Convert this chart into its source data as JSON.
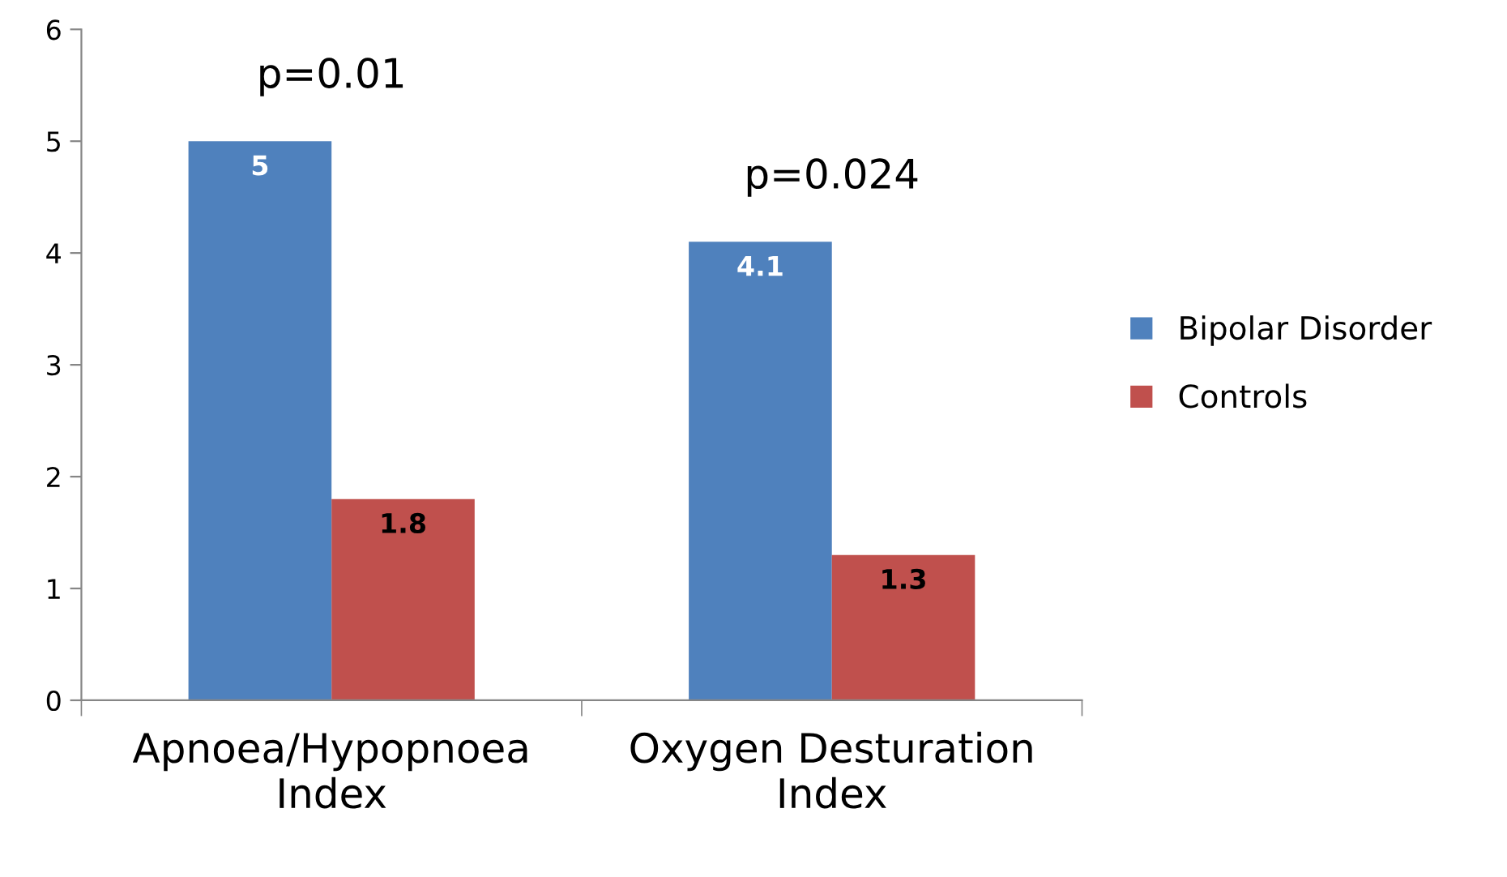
{
  "chart_data": {
    "type": "bar",
    "categories": [
      "Apnoea/Hypopnoea\nIndex",
      "Oxygen Desturation\nIndex"
    ],
    "series": [
      {
        "name": "Bipolar Disorder",
        "color": "#4f81bd",
        "values": [
          5,
          4.1
        ]
      },
      {
        "name": "Controls",
        "color": "#c0504d",
        "values": [
          1.8,
          1.3
        ]
      }
    ],
    "ylim": [
      0,
      6
    ],
    "yticks": [
      0,
      1,
      2,
      3,
      4,
      5,
      6
    ],
    "data_labels": true,
    "grid": false,
    "legend": "right",
    "annotations": [
      "p=0.01",
      "p=0.024"
    ]
  }
}
